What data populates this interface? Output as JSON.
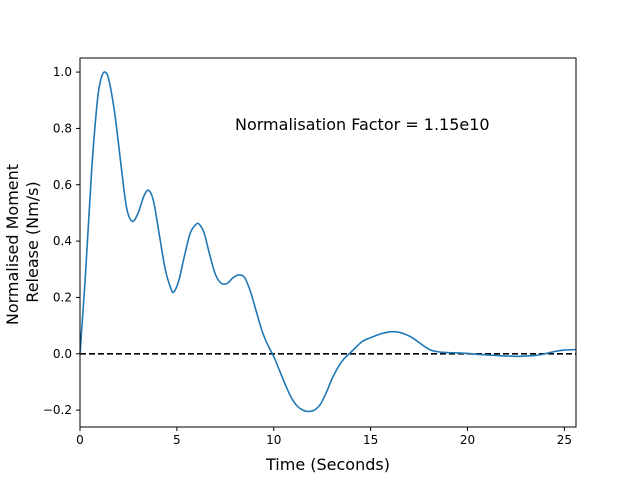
{
  "chart_data": {
    "type": "line",
    "title": "",
    "xlabel": "Time (Seconds)",
    "ylabel_lines": [
      "Normalised Moment",
      "Release (Nm/s)"
    ],
    "annotation": "Normalisation Factor = 1.15e10",
    "xlim": [
      0,
      25.6
    ],
    "ylim": [
      -0.26,
      1.05
    ],
    "xticks": [
      0,
      5,
      10,
      15,
      20,
      25
    ],
    "yticks": [
      -0.2,
      0.0,
      0.2,
      0.4,
      0.6,
      0.8,
      1.0
    ],
    "xtick_labels": [
      "0",
      "5",
      "10",
      "15",
      "20",
      "25"
    ],
    "ytick_labels": [
      "−0.2",
      "0.0",
      "0.2",
      "0.4",
      "0.6",
      "0.8",
      "1.0"
    ],
    "grid": false,
    "reference_line": {
      "y": 0.0,
      "style": "dashed",
      "color": "#000000"
    },
    "series": [
      {
        "color": "#1f77b4",
        "x": [
          0,
          0.3,
          0.6,
          0.9,
          1.1,
          1.3,
          1.5,
          1.8,
          2.1,
          2.4,
          2.7,
          3.0,
          3.3,
          3.55,
          3.8,
          4.1,
          4.4,
          4.7,
          4.85,
          5.1,
          5.4,
          5.7,
          6.0,
          6.15,
          6.4,
          6.7,
          7.0,
          7.3,
          7.6,
          7.9,
          8.2,
          8.5,
          8.8,
          9.1,
          9.4,
          9.7,
          10.0,
          10.3,
          10.6,
          10.9,
          11.2,
          11.5,
          11.8,
          12.1,
          12.4,
          12.7,
          13.0,
          13.3,
          13.6,
          13.9,
          14.2,
          14.5,
          14.8,
          15.1,
          15.4,
          15.7,
          16.0,
          16.3,
          16.6,
          16.9,
          17.2,
          17.5,
          17.8,
          18.1,
          18.4,
          18.7,
          19.0,
          19.5,
          20.0,
          20.5,
          21.0,
          21.5,
          22.0,
          22.5,
          23.0,
          23.5,
          24.0,
          24.5,
          25.0,
          25.6
        ],
        "y": [
          0.0,
          0.3,
          0.65,
          0.9,
          0.98,
          1.0,
          0.97,
          0.85,
          0.68,
          0.52,
          0.47,
          0.5,
          0.56,
          0.58,
          0.54,
          0.42,
          0.3,
          0.23,
          0.22,
          0.26,
          0.35,
          0.43,
          0.46,
          0.46,
          0.43,
          0.35,
          0.28,
          0.25,
          0.25,
          0.27,
          0.28,
          0.27,
          0.22,
          0.15,
          0.08,
          0.03,
          -0.01,
          -0.06,
          -0.11,
          -0.155,
          -0.185,
          -0.2,
          -0.205,
          -0.2,
          -0.18,
          -0.14,
          -0.09,
          -0.05,
          -0.02,
          0.0,
          0.02,
          0.04,
          0.052,
          0.06,
          0.068,
          0.074,
          0.078,
          0.078,
          0.074,
          0.066,
          0.055,
          0.04,
          0.025,
          0.013,
          0.008,
          0.005,
          0.004,
          0.003,
          0.001,
          -0.002,
          -0.004,
          -0.006,
          -0.008,
          -0.009,
          -0.008,
          -0.006,
          0.0,
          0.008,
          0.013,
          0.015
        ]
      }
    ]
  }
}
